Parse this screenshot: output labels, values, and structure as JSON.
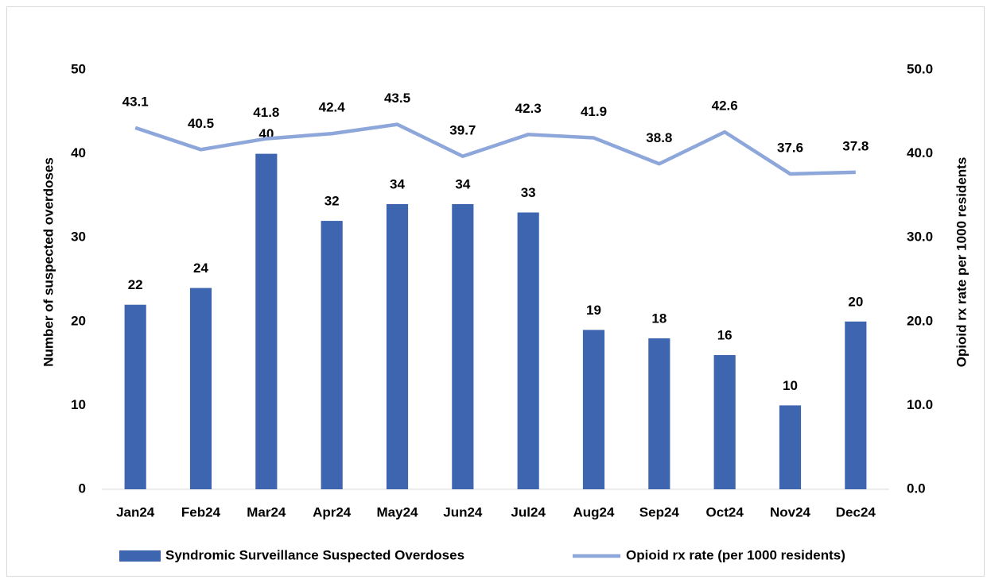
{
  "chart_data": {
    "type": "bar",
    "categories": [
      "Jan24",
      "Feb24",
      "Mar24",
      "Apr24",
      "May24",
      "Jun24",
      "Jul24",
      "Aug24",
      "Sep24",
      "Oct24",
      "Nov24",
      "Dec24"
    ],
    "series": [
      {
        "name": "Syndromic Surveillance Suspected Overdoses",
        "type": "bar",
        "color": "#3e65b0",
        "axis": "y",
        "values": [
          22,
          24,
          40,
          32,
          34,
          34,
          33,
          19,
          18,
          16,
          10,
          20
        ]
      },
      {
        "name": "Opioid rx rate (per 1000 residents)",
        "type": "line",
        "color": "#8ea7db",
        "axis": "y2",
        "values": [
          43.1,
          40.5,
          41.8,
          42.4,
          43.5,
          39.7,
          42.3,
          41.9,
          38.8,
          42.6,
          37.6,
          37.8
        ]
      }
    ],
    "y_label": "Number of suspected overdoses",
    "y2_label": "Opioid rx rate per 1000 residents",
    "ylim": [
      0,
      50
    ],
    "yticks": [
      0,
      10,
      20,
      30,
      40,
      50
    ],
    "y2lim": [
      0,
      50
    ],
    "y2ticks": [
      {
        "value": 0,
        "label": "0.0"
      },
      {
        "value": 10,
        "label": "10.0"
      },
      {
        "value": 20,
        "label": "20.0"
      },
      {
        "value": 30,
        "label": "30.0"
      },
      {
        "value": 40,
        "label": "40.0"
      },
      {
        "value": 50,
        "label": "50.0"
      }
    ],
    "grid": false,
    "legend": "bottom"
  }
}
